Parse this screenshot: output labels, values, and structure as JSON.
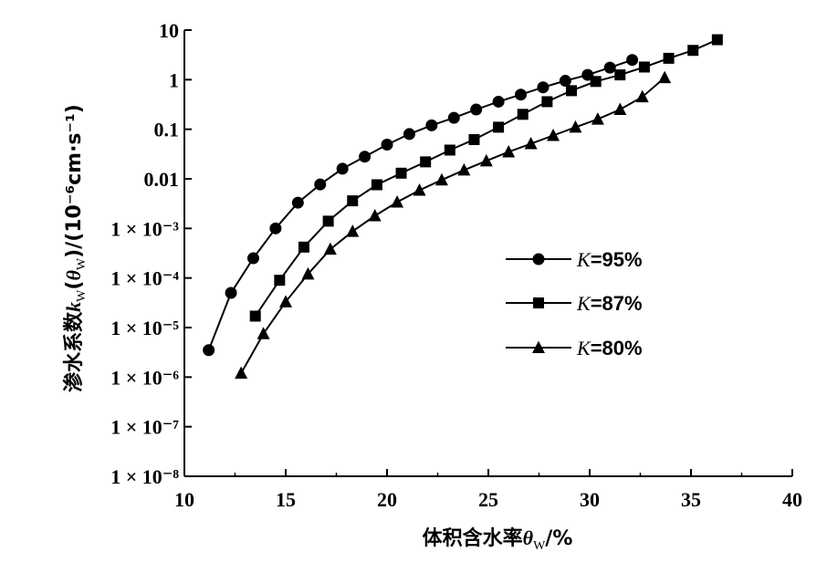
{
  "chart_data": {
    "type": "line",
    "xlabel": {
      "main": "体积含水率",
      "symbol": "θ",
      "sub": "W",
      "unit": "/%"
    },
    "ylabel": {
      "prefix": "渗水系数",
      "k": "k",
      "sub1": "W",
      "open": "(",
      "theta": "θ",
      "sub2": "W",
      "close": ")",
      "unit": "/(10⁻⁶cm·s⁻¹)"
    },
    "xlim": [
      10,
      40
    ],
    "ylim_log10": [
      -8,
      1
    ],
    "y_scale": "log",
    "x_ticks": [
      "10",
      "15",
      "20",
      "25",
      "30",
      "35",
      "40"
    ],
    "y_ticks": [
      {
        "value": 10,
        "label": "10"
      },
      {
        "value": 1,
        "label": "1"
      },
      {
        "value": 0.1,
        "label": "0.1"
      },
      {
        "value": 0.01,
        "label": "0.01"
      },
      {
        "value": 0.001,
        "label": "1 × 10⁻³"
      },
      {
        "value": 0.0001,
        "label": "1 × 10⁻⁴"
      },
      {
        "value": 1e-05,
        "label": "1 × 10⁻⁵"
      },
      {
        "value": 1e-06,
        "label": "1 × 10⁻⁶"
      },
      {
        "value": 1e-07,
        "label": "1 × 10⁻⁷"
      },
      {
        "value": 1e-08,
        "label": "1 × 10⁻⁸"
      }
    ],
    "grid": false,
    "legend_position": "right-center",
    "series": [
      {
        "name_k": "K",
        "name_rest": "=95%",
        "marker": "circle",
        "x": [
          11.2,
          12.3,
          13.4,
          14.5,
          15.6,
          16.7,
          17.8,
          18.9,
          20.0,
          21.1,
          22.2,
          23.3,
          24.4,
          25.5,
          26.6,
          27.7,
          28.8,
          29.9,
          31.0,
          32.1
        ],
        "y": [
          3.5e-06,
          5e-05,
          0.00025,
          0.001,
          0.0033,
          0.0077,
          0.016,
          0.028,
          0.049,
          0.08,
          0.12,
          0.17,
          0.25,
          0.36,
          0.5,
          0.7,
          0.95,
          1.25,
          1.75,
          2.5
        ]
      },
      {
        "name_k": "K",
        "name_rest": "=87%",
        "marker": "square",
        "x": [
          13.5,
          14.7,
          15.9,
          17.1,
          18.3,
          19.5,
          20.7,
          21.9,
          23.1,
          24.3,
          25.5,
          26.7,
          27.9,
          29.1,
          30.3,
          31.5,
          32.7,
          33.9,
          35.1,
          36.3
        ],
        "y": [
          1.7e-05,
          9e-05,
          0.00042,
          0.0014,
          0.0036,
          0.0076,
          0.013,
          0.022,
          0.038,
          0.062,
          0.11,
          0.2,
          0.36,
          0.6,
          0.92,
          1.25,
          1.8,
          2.7,
          3.9,
          6.4
        ]
      },
      {
        "name_k": "K",
        "name_rest": "=80%",
        "marker": "triangle",
        "x": [
          12.8,
          13.9,
          15.0,
          16.1,
          17.2,
          18.3,
          19.4,
          20.5,
          21.6,
          22.7,
          23.8,
          24.9,
          26.0,
          27.1,
          28.2,
          29.3,
          30.4,
          31.5,
          32.6,
          33.7
        ],
        "y": [
          1.2e-06,
          7.5e-06,
          3.3e-05,
          0.00012,
          0.00038,
          0.00087,
          0.0018,
          0.0034,
          0.0059,
          0.0095,
          0.015,
          0.023,
          0.035,
          0.051,
          0.075,
          0.11,
          0.16,
          0.25,
          0.45,
          1.1
        ]
      }
    ]
  }
}
